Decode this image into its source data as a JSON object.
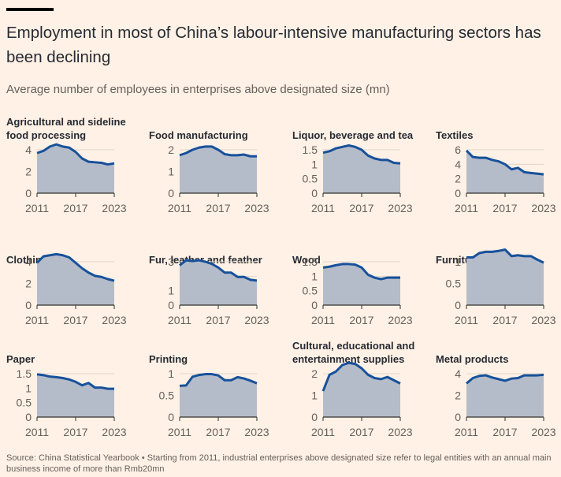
{
  "header": {
    "title": "Employment in most of China’s labour-intensive manufacturing sectors has been declining",
    "subtitle": "Average number of employees in enterprises above designated size (mn)"
  },
  "footer": {
    "source": "Source: China Statistical Yearbook • Starting from 2011, industrial enterprises above designated size refer to legal entities with an annual main business income of more than Rmb20mn"
  },
  "colors": {
    "background": "#fff1e5",
    "area_fill": "#b5bcc9",
    "line": "#17519b",
    "gridline": "#e1d5c9",
    "axis": "#33302e"
  },
  "chart_data": [
    {
      "type": "area",
      "title": "Agricultural and sideline food processing",
      "x": [
        2011,
        2012,
        2013,
        2014,
        2015,
        2016,
        2017,
        2018,
        2019,
        2020,
        2021,
        2022,
        2023
      ],
      "values": [
        3.7,
        3.9,
        4.3,
        4.5,
        4.3,
        4.2,
        3.8,
        3.2,
        2.9,
        2.85,
        2.8,
        2.65,
        2.75
      ],
      "ylim": [
        0,
        4
      ],
      "yticks": [
        0,
        2,
        4
      ],
      "ytick_labels": [
        "0",
        "2",
        "4"
      ],
      "xticks": [
        2011,
        2017,
        2023
      ],
      "xtick_labels": [
        "2011",
        "2017",
        "2023"
      ]
    },
    {
      "type": "area",
      "title": "Food manufacturing",
      "x": [
        2011,
        2012,
        2013,
        2014,
        2015,
        2016,
        2017,
        2018,
        2019,
        2020,
        2021,
        2022,
        2023
      ],
      "values": [
        1.75,
        1.85,
        2.0,
        2.1,
        2.15,
        2.15,
        2.0,
        1.8,
        1.75,
        1.75,
        1.78,
        1.7,
        1.7
      ],
      "ylim": [
        0,
        2
      ],
      "yticks": [
        0,
        1,
        2
      ],
      "ytick_labels": [
        "0",
        "1",
        "2"
      ],
      "xticks": [
        2011,
        2017,
        2023
      ],
      "xtick_labels": [
        "2011",
        "2017",
        "2023"
      ]
    },
    {
      "type": "area",
      "title": "Liquor, beverage and tea",
      "x": [
        2011,
        2012,
        2013,
        2014,
        2015,
        2016,
        2017,
        2018,
        2019,
        2020,
        2021,
        2022,
        2023
      ],
      "values": [
        1.4,
        1.45,
        1.55,
        1.6,
        1.65,
        1.6,
        1.5,
        1.3,
        1.2,
        1.15,
        1.15,
        1.05,
        1.03
      ],
      "ylim": [
        0,
        1.5
      ],
      "yticks": [
        0,
        0.5,
        1,
        1.5
      ],
      "ytick_labels": [
        "0",
        "0.5",
        "1",
        "1.5"
      ],
      "xticks": [
        2011,
        2017,
        2023
      ],
      "xtick_labels": [
        "2011",
        "2017",
        "2023"
      ]
    },
    {
      "type": "area",
      "title": "Textiles",
      "x": [
        2011,
        2012,
        2013,
        2014,
        2015,
        2016,
        2017,
        2018,
        2019,
        2020,
        2021,
        2022,
        2023
      ],
      "values": [
        5.9,
        5.0,
        4.9,
        4.9,
        4.6,
        4.4,
        4.0,
        3.3,
        3.5,
        2.9,
        2.8,
        2.7,
        2.6
      ],
      "ylim": [
        0,
        6
      ],
      "yticks": [
        0,
        2,
        4,
        6
      ],
      "ytick_labels": [
        "0",
        "2",
        "4",
        "6"
      ],
      "xticks": [
        2011,
        2017,
        2023
      ],
      "xtick_labels": [
        "2011",
        "2017",
        "2023"
      ]
    },
    {
      "type": "area",
      "title": "Clothing",
      "x": [
        2011,
        2012,
        2013,
        2014,
        2015,
        2016,
        2017,
        2018,
        2019,
        2020,
        2021,
        2022,
        2023
      ],
      "values": [
        3.9,
        4.5,
        4.6,
        4.7,
        4.6,
        4.4,
        3.9,
        3.4,
        3.0,
        2.7,
        2.6,
        2.4,
        2.25
      ],
      "ylim": [
        0,
        4
      ],
      "yticks": [
        0,
        2,
        4
      ],
      "ytick_labels": [
        "0",
        "2",
        "4"
      ],
      "xticks": [
        2011,
        2017,
        2023
      ],
      "xtick_labels": [
        "2011",
        "2017",
        "2023"
      ]
    },
    {
      "type": "area",
      "title": "Fur, leather and feather",
      "x": [
        2011,
        2012,
        2013,
        2014,
        2015,
        2016,
        2017,
        2018,
        2019,
        2020,
        2021,
        2022,
        2023
      ],
      "values": [
        2.75,
        3.1,
        3.05,
        3.1,
        3.0,
        2.85,
        2.6,
        2.25,
        2.25,
        1.95,
        1.95,
        1.75,
        1.7
      ],
      "ylim": [
        0,
        3
      ],
      "yticks": [
        0,
        1,
        2,
        3
      ],
      "ytick_labels": [
        "0",
        "1",
        "",
        "3"
      ],
      "xticks": [
        2011,
        2017,
        2023
      ],
      "xtick_labels": [
        "2011",
        "2017",
        "2023"
      ]
    },
    {
      "type": "area",
      "title": "Wood",
      "x": [
        2011,
        2012,
        2013,
        2014,
        2015,
        2016,
        2017,
        2018,
        2019,
        2020,
        2021,
        2022,
        2023
      ],
      "values": [
        1.3,
        1.33,
        1.38,
        1.42,
        1.42,
        1.4,
        1.3,
        1.05,
        0.95,
        0.9,
        0.95,
        0.95,
        0.95
      ],
      "ylim": [
        0,
        1.5
      ],
      "yticks": [
        0,
        0.5,
        1,
        1.5
      ],
      "ytick_labels": [
        "0",
        "0.5",
        "1",
        "1.5"
      ],
      "xticks": [
        2011,
        2017,
        2023
      ],
      "xtick_labels": [
        "2011",
        "2017",
        "2023"
      ]
    },
    {
      "type": "area",
      "title": "Furniture",
      "x": [
        2011,
        2012,
        2013,
        2014,
        2015,
        2016,
        2017,
        2018,
        2019,
        2020,
        2021,
        2022,
        2023
      ],
      "values": [
        1.1,
        1.1,
        1.2,
        1.23,
        1.23,
        1.25,
        1.28,
        1.13,
        1.15,
        1.13,
        1.13,
        1.05,
        0.98
      ],
      "ylim": [
        0,
        1
      ],
      "yticks": [
        0,
        0.5,
        1
      ],
      "ytick_labels": [
        "0",
        "0.5",
        "1"
      ],
      "xticks": [
        2011,
        2017,
        2023
      ],
      "xtick_labels": [
        "2011",
        "2017",
        "2023"
      ]
    },
    {
      "type": "area",
      "title": "Paper",
      "x": [
        2011,
        2012,
        2013,
        2014,
        2015,
        2016,
        2017,
        2018,
        2019,
        2020,
        2021,
        2022,
        2023
      ],
      "values": [
        1.48,
        1.45,
        1.4,
        1.38,
        1.35,
        1.3,
        1.22,
        1.1,
        1.18,
        1.02,
        1.02,
        0.98,
        0.98
      ],
      "ylim": [
        0,
        1.5
      ],
      "yticks": [
        0,
        0.5,
        1,
        1.5
      ],
      "ytick_labels": [
        "0",
        "0.5",
        "1",
        "1.5"
      ],
      "xticks": [
        2011,
        2017,
        2023
      ],
      "xtick_labels": [
        "2011",
        "2017",
        "2023"
      ]
    },
    {
      "type": "area",
      "title": "Printing",
      "x": [
        2011,
        2012,
        2013,
        2014,
        2015,
        2016,
        2017,
        2018,
        2019,
        2020,
        2021,
        2022,
        2023
      ],
      "values": [
        0.72,
        0.73,
        0.93,
        0.97,
        0.99,
        0.99,
        0.96,
        0.85,
        0.85,
        0.92,
        0.89,
        0.84,
        0.78
      ],
      "ylim": [
        0,
        1
      ],
      "yticks": [
        0,
        0.5,
        1
      ],
      "ytick_labels": [
        "0",
        "0.5",
        "1"
      ],
      "xticks": [
        2011,
        2017,
        2023
      ],
      "xtick_labels": [
        "2011",
        "2017",
        "2023"
      ]
    },
    {
      "type": "area",
      "title": "Cultural, educational and entertainment supplies",
      "x": [
        2011,
        2012,
        2013,
        2014,
        2015,
        2016,
        2017,
        2018,
        2019,
        2020,
        2021,
        2022,
        2023
      ],
      "values": [
        1.2,
        1.95,
        2.1,
        2.4,
        2.5,
        2.45,
        2.25,
        1.95,
        1.8,
        1.75,
        1.85,
        1.7,
        1.55
      ],
      "ylim": [
        0,
        2
      ],
      "yticks": [
        0,
        1,
        2
      ],
      "ytick_labels": [
        "0",
        "1",
        "2"
      ],
      "xticks": [
        2011,
        2017,
        2023
      ],
      "xtick_labels": [
        "2011",
        "2017",
        "2023"
      ]
    },
    {
      "type": "area",
      "title": "Metal products",
      "x": [
        2011,
        2012,
        2013,
        2014,
        2015,
        2016,
        2017,
        2018,
        2019,
        2020,
        2021,
        2022,
        2023
      ],
      "values": [
        3.1,
        3.6,
        3.8,
        3.85,
        3.65,
        3.5,
        3.35,
        3.55,
        3.6,
        3.85,
        3.85,
        3.85,
        3.9
      ],
      "ylim": [
        0,
        4
      ],
      "yticks": [
        0,
        2,
        4
      ],
      "ytick_labels": [
        "0",
        "2",
        "4"
      ],
      "xticks": [
        2011,
        2017,
        2023
      ],
      "xtick_labels": [
        "2011",
        "2017",
        "2023"
      ]
    }
  ]
}
